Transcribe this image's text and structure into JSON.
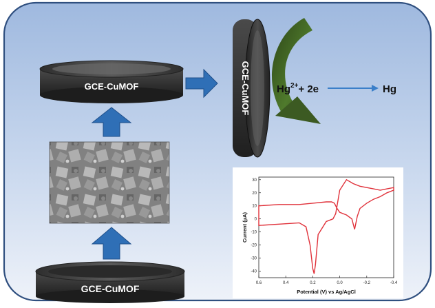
{
  "labels": {
    "top_electrode": "GCE-CuMOF",
    "bottom_electrode": "GCE-CuMOF",
    "vertical_electrode": "GCE-CuMOF"
  },
  "reaction": {
    "reactant": "Hg",
    "charge": "2+",
    "electrons": "+ 2e",
    "product": "Hg"
  },
  "colors": {
    "background_gradient_top": "#a9c2e3",
    "background_gradient_bottom": "#e8eef7",
    "panel_border": "#2f4f7f",
    "electrode_body": "#3a3a3a",
    "blue_arrow": "#2f6fb6",
    "green_arrow": "#3c5a22",
    "cv_curve": "#e0313a"
  },
  "micrograph": {
    "description_icon": "sem-image"
  },
  "chart_data": {
    "type": "line",
    "title": "",
    "xlabel": "Potential (V) vs Ag/AgCl",
    "ylabel": "Current (µA)",
    "xlim": [
      0.6,
      -0.4
    ],
    "ylim": [
      -45,
      32
    ],
    "xticks": [
      "0.6",
      "0.4",
      "0.2",
      "0.0",
      "-0.2",
      "-0.4"
    ],
    "yticks": [
      "30",
      "20",
      "10",
      "0",
      "-10",
      "-20",
      "-30",
      "-40"
    ],
    "series": [
      {
        "x": [
          0.6,
          0.45,
          0.3,
          0.25,
          0.22,
          0.2,
          0.19,
          0.18,
          0.16,
          0.1,
          0.05,
          0.03,
          0.02,
          0.0,
          -0.05,
          -0.1,
          -0.15,
          -0.2,
          -0.25,
          -0.3,
          -0.35,
          -0.4,
          -0.4,
          -0.35,
          -0.3,
          -0.25,
          -0.2,
          -0.15,
          -0.13,
          -0.11,
          -0.09,
          -0.05,
          0.0,
          0.02,
          0.04,
          0.06,
          0.1,
          0.2,
          0.3,
          0.45,
          0.6
        ],
        "y": [
          -5,
          -4,
          -3,
          -6,
          -20,
          -38,
          -42,
          -35,
          -12,
          -2,
          0,
          4,
          10,
          22,
          30,
          27,
          25,
          24,
          23,
          22,
          23,
          24,
          22,
          20,
          17,
          15,
          12,
          8,
          2,
          -8,
          0,
          3,
          5,
          8,
          12,
          13,
          13,
          12,
          11,
          11,
          10
        ]
      }
    ]
  }
}
